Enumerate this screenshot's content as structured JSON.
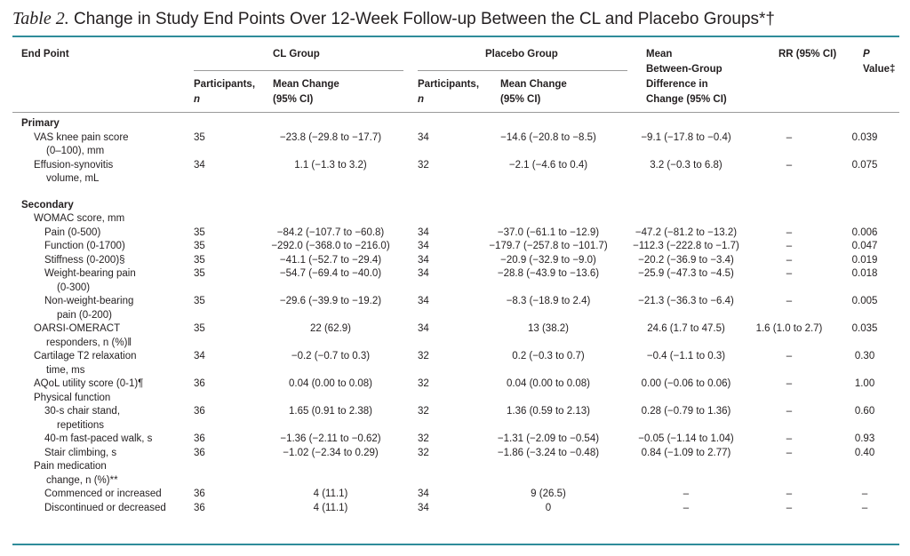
{
  "title": {
    "label": "Table 2.",
    "text": "Change in Study End Points Over 12-Week Follow-up Between the CL and Placebo Groups*†"
  },
  "headers": {
    "end_point": "End Point",
    "cl_group": "CL Group",
    "placebo_group": "Placebo Group",
    "mean_between_1": "Mean",
    "mean_between_2": "Between-Group",
    "mean_between_3": "Difference in",
    "mean_between_4": "Change (95% CI)",
    "rr": "RR (95% CI)",
    "p_1": "P",
    "p_2": "Value‡",
    "participants": "Participants,",
    "participants_n": "n",
    "mean_change": "Mean Change",
    "mean_change_ci": "(95% CI)"
  },
  "sections": {
    "primary": "Primary",
    "secondary": "Secondary",
    "womac": "WOMAC score, mm",
    "physical": "Physical function"
  },
  "rows": [
    {
      "name": "VAS knee pain score",
      "name2": "(0–100), mm",
      "cl_n": "35",
      "cl_mean": "−23.8 (−29.8 to −17.7)",
      "pl_n": "34",
      "pl_mean": "−14.6 (−20.8 to −8.5)",
      "diff": "−9.1 (−17.8 to −0.4)",
      "rr": "–",
      "p": "0.039"
    },
    {
      "name": "Effusion-synovitis",
      "name2": "volume, mL",
      "cl_n": "34",
      "cl_mean": "1.1 (−1.3 to 3.2)",
      "pl_n": "32",
      "pl_mean": "−2.1 (−4.6 to 0.4)",
      "diff": "3.2 (−0.3 to 6.8)",
      "rr": "–",
      "p": "0.075"
    },
    {
      "name": "Pain (0-500)",
      "cl_n": "35",
      "cl_mean": "−84.2 (−107.7 to −60.8)",
      "pl_n": "34",
      "pl_mean": "−37.0 (−61.1 to −12.9)",
      "diff": "−47.2 (−81.2 to −13.2)",
      "rr": "–",
      "p": "0.006"
    },
    {
      "name": "Function (0-1700)",
      "cl_n": "35",
      "cl_mean": "−292.0 (−368.0 to −216.0)",
      "pl_n": "34",
      "pl_mean": "−179.7 (−257.8 to −101.7)",
      "diff": "−112.3 (−222.8 to −1.7)",
      "rr": "–",
      "p": "0.047"
    },
    {
      "name": "Stiffness (0-200)§",
      "cl_n": "35",
      "cl_mean": "−41.1 (−52.7 to −29.4)",
      "pl_n": "34",
      "pl_mean": "−20.9 (−32.9 to −9.0)",
      "diff": "−20.2 (−36.9 to −3.4)",
      "rr": "–",
      "p": "0.019"
    },
    {
      "name": "Weight-bearing pain",
      "name2": "(0-300)",
      "cl_n": "35",
      "cl_mean": "−54.7 (−69.4 to −40.0)",
      "pl_n": "34",
      "pl_mean": "−28.8 (−43.9 to −13.6)",
      "diff": "−25.9 (−47.3 to −4.5)",
      "rr": "–",
      "p": "0.018"
    },
    {
      "name": "Non-weight-bearing",
      "name2": "pain (0-200)",
      "cl_n": "35",
      "cl_mean": "−29.6 (−39.9 to −19.2)",
      "pl_n": "34",
      "pl_mean": "−8.3 (−18.9 to 2.4)",
      "diff": "−21.3 (−36.3 to −6.4)",
      "rr": "–",
      "p": "0.005"
    },
    {
      "name": "OARSI-OMERACT",
      "name2": "responders, n (%)‖",
      "cl_n": "35",
      "cl_mean": "22 (62.9)",
      "pl_n": "34",
      "pl_mean": "13 (38.2)",
      "diff": "24.6 (1.7 to 47.5)",
      "rr": "1.6 (1.0 to 2.7)",
      "p": "0.035"
    },
    {
      "name": "Cartilage T2 relaxation",
      "name2": "time, ms",
      "cl_n": "34",
      "cl_mean": "−0.2 (−0.7 to 0.3)",
      "pl_n": "32",
      "pl_mean": "0.2 (−0.3 to 0.7)",
      "diff": "−0.4 (−1.1 to 0.3)",
      "rr": "–",
      "p": "0.30"
    },
    {
      "name": "AQoL utility score (0-1)¶",
      "cl_n": "36",
      "cl_mean": "0.04 (0.00 to 0.08)",
      "pl_n": "32",
      "pl_mean": "0.04 (0.00 to 0.08)",
      "diff": "0.00 (−0.06 to 0.06)",
      "rr": "–",
      "p": "1.00"
    },
    {
      "name": "30-s chair stand,",
      "name2": "repetitions",
      "cl_n": "36",
      "cl_mean": "1.65 (0.91 to 2.38)",
      "pl_n": "32",
      "pl_mean": "1.36 (0.59 to 2.13)",
      "diff": "0.28 (−0.79 to 1.36)",
      "rr": "–",
      "p": "0.60"
    },
    {
      "name": "40-m fast-paced walk, s",
      "cl_n": "36",
      "cl_mean": "−1.36 (−2.11 to −0.62)",
      "pl_n": "32",
      "pl_mean": "−1.31 (−2.09 to −0.54)",
      "diff": "−0.05 (−1.14 to 1.04)",
      "rr": "–",
      "p": "0.93"
    },
    {
      "name": "Stair climbing, s",
      "cl_n": "36",
      "cl_mean": "−1.02 (−2.34 to 0.29)",
      "pl_n": "32",
      "pl_mean": "−1.86 (−3.24 to −0.48)",
      "diff": "0.84 (−1.09 to 2.77)",
      "rr": "–",
      "p": "0.40"
    },
    {
      "name": "Pain medication",
      "name2": "change, n (%)**"
    },
    {
      "name": "Commenced or increased",
      "cl_n": "36",
      "cl_mean": "4 (11.1)",
      "pl_n": "34",
      "pl_mean": "9 (26.5)",
      "diff": "–",
      "rr": "–",
      "p": "–"
    },
    {
      "name": "Discontinued or decreased",
      "cl_n": "36",
      "cl_mean": "4 (11.1)",
      "pl_n": "34",
      "pl_mean": "0",
      "diff": "–",
      "rr": "–",
      "p": "–"
    }
  ]
}
